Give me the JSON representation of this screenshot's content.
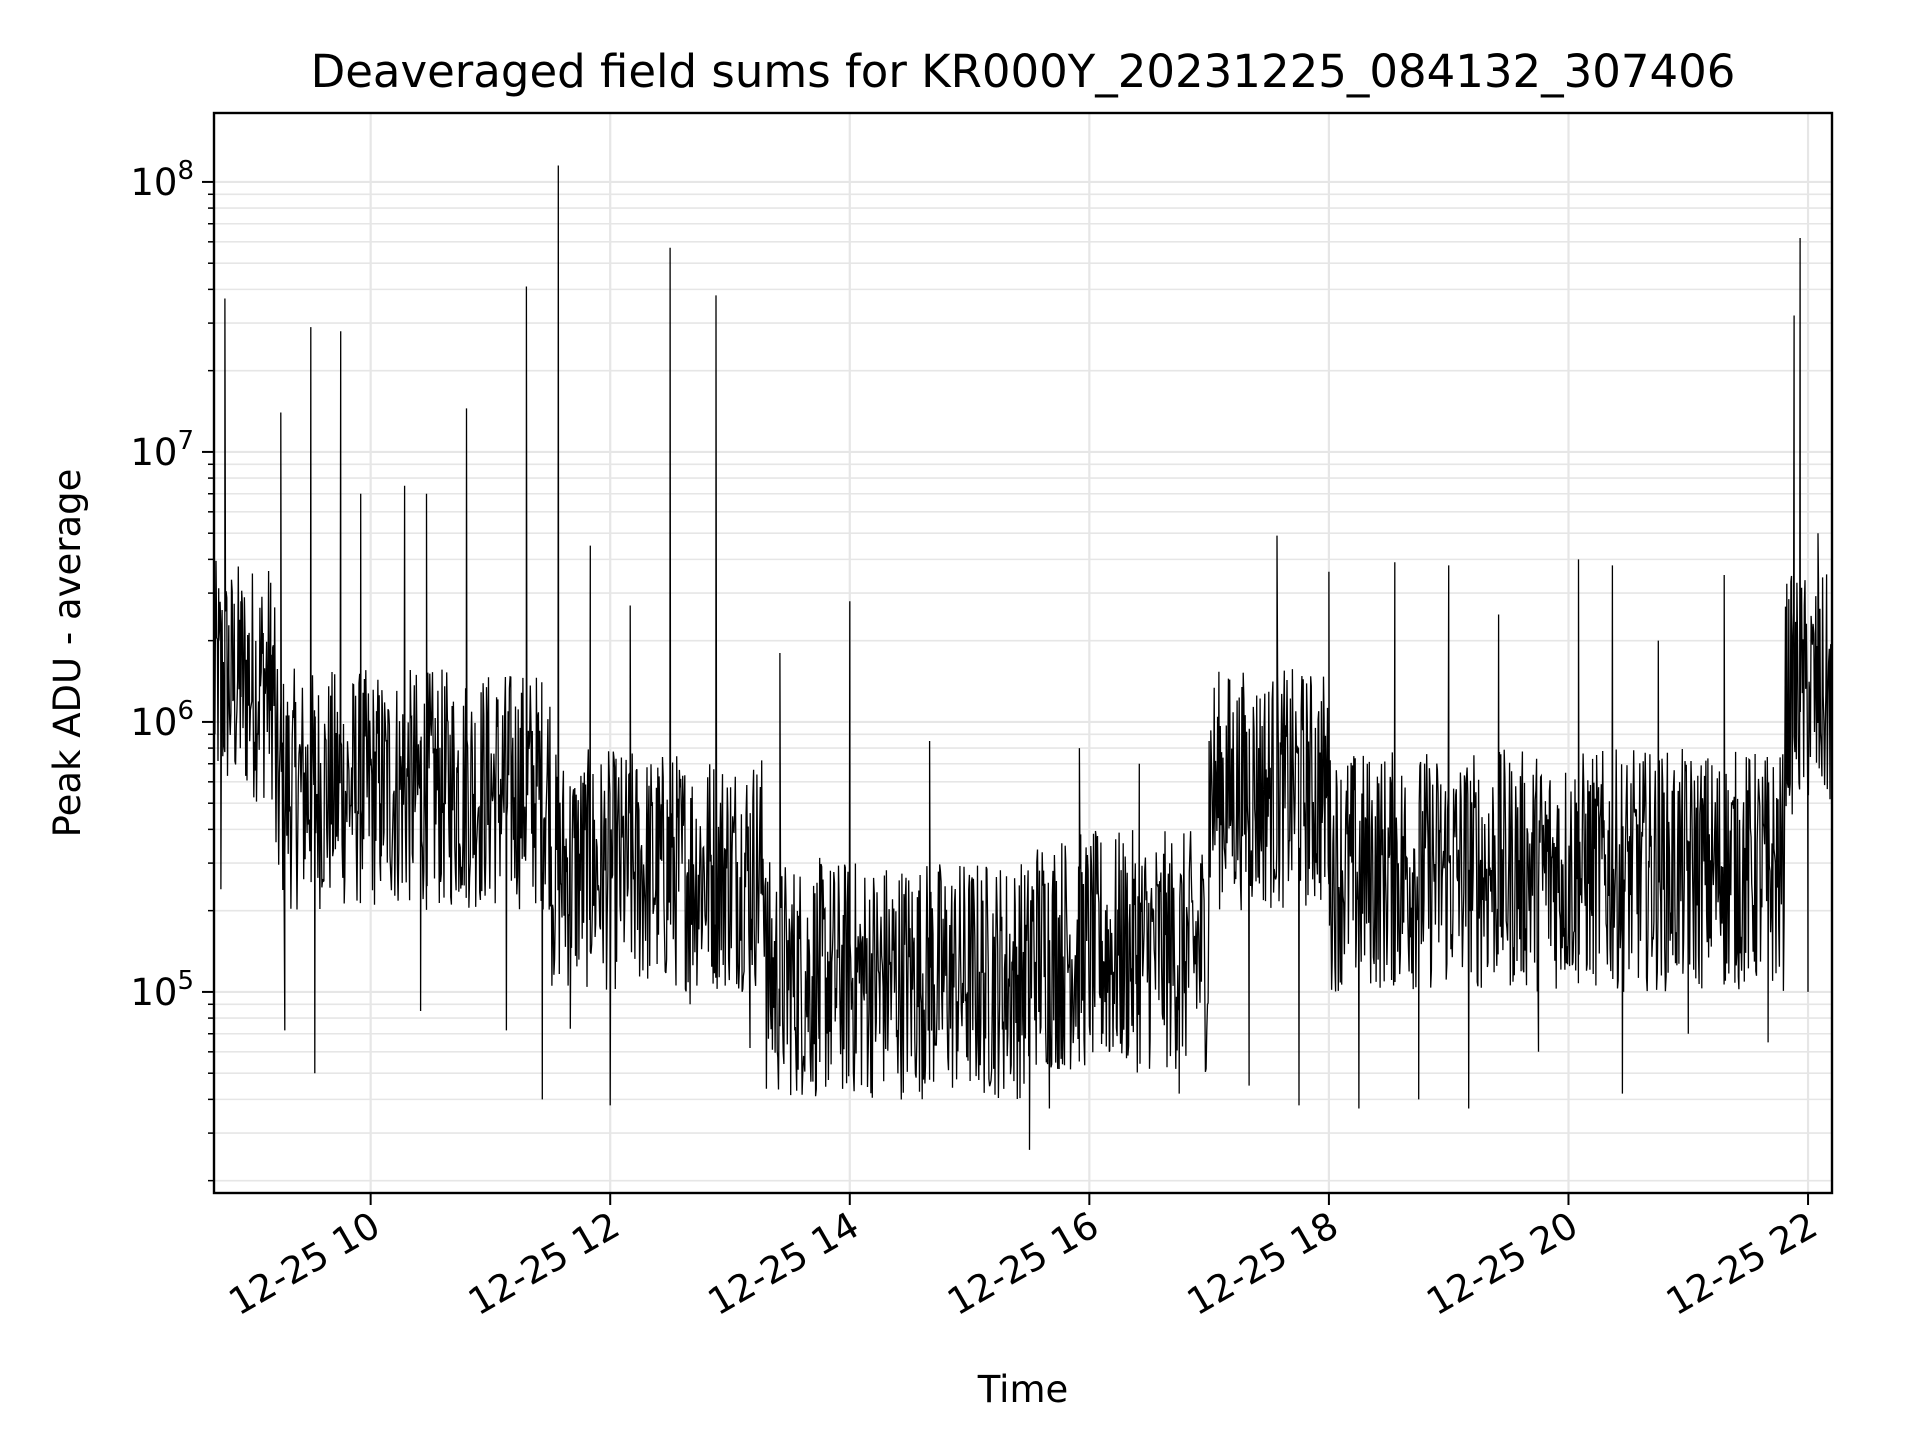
{
  "chart_data": {
    "type": "line",
    "title": "Deaveraged field sums for KR000Y_20231225_084132_307406",
    "xlabel": "Time",
    "ylabel": "Peak ADU - average",
    "y_scale": "log",
    "ylim": [
      18000,
      180000000
    ],
    "xlim": [
      "2023-12-25 08:41:32",
      "2023-12-25 22:12:00"
    ],
    "x_ticks": [
      "12-25 10",
      "12-25 12",
      "12-25 14",
      "12-25 16",
      "12-25 18",
      "12-25 20",
      "12-25 22"
    ],
    "y_ticks": [
      {
        "base": "10",
        "exp": "5",
        "value": 100000
      },
      {
        "base": "10",
        "exp": "6",
        "value": 1000000
      },
      {
        "base": "10",
        "exp": "7",
        "value": 10000000
      },
      {
        "base": "10",
        "exp": "8",
        "value": 100000000
      }
    ],
    "grid": true,
    "line_color": "#000000",
    "series": [
      {
        "points": [
          [
            "2023-12-25 08:42",
            900000
          ],
          [
            "2023-12-25 08:44",
            2000000
          ],
          [
            "2023-12-25 08:45",
            240000
          ],
          [
            "2023-12-25 08:47",
            37000000
          ],
          [
            "2023-12-25 08:49",
            1500000
          ],
          [
            "2023-12-25 08:55",
            2800000
          ],
          [
            "2023-12-25 09:10",
            1100000
          ],
          [
            "2023-12-25 09:15",
            14000000
          ],
          [
            "2023-12-25 09:17",
            72000
          ],
          [
            "2023-12-25 09:30",
            29000000
          ],
          [
            "2023-12-25 09:32",
            50000
          ],
          [
            "2023-12-25 09:40",
            700000
          ],
          [
            "2023-12-25 09:45",
            28000000
          ],
          [
            "2023-12-25 09:55",
            7000000
          ],
          [
            "2023-12-25 10:05",
            500000
          ],
          [
            "2023-12-25 10:17",
            7500000
          ],
          [
            "2023-12-25 10:25",
            85000
          ],
          [
            "2023-12-25 10:28",
            7000000
          ],
          [
            "2023-12-25 10:40",
            600000
          ],
          [
            "2023-12-25 10:48",
            14500000
          ],
          [
            "2023-12-25 11:00",
            400000
          ],
          [
            "2023-12-25 11:08",
            72000
          ],
          [
            "2023-12-25 11:18",
            41000000
          ],
          [
            "2023-12-25 11:26",
            40000
          ],
          [
            "2023-12-25 11:34",
            115000000
          ],
          [
            "2023-12-25 11:40",
            73000
          ],
          [
            "2023-12-25 11:50",
            4500000
          ],
          [
            "2023-12-25 12:00",
            38000
          ],
          [
            "2023-12-25 12:10",
            2700000
          ],
          [
            "2023-12-25 12:30",
            57000000
          ],
          [
            "2023-12-25 12:40",
            90000
          ],
          [
            "2023-12-25 12:53",
            38000000
          ],
          [
            "2023-12-25 13:10",
            62000
          ],
          [
            "2023-12-25 13:25",
            1800000
          ],
          [
            "2023-12-25 13:45",
            55000
          ],
          [
            "2023-12-25 14:00",
            2800000
          ],
          [
            "2023-12-25 14:15",
            70000
          ],
          [
            "2023-12-25 14:40",
            850000
          ],
          [
            "2023-12-25 15:05",
            60000
          ],
          [
            "2023-12-25 15:30",
            26000
          ],
          [
            "2023-12-25 15:40",
            37000
          ],
          [
            "2023-12-25 15:55",
            800000
          ],
          [
            "2023-12-25 16:10",
            60000
          ],
          [
            "2023-12-25 16:25",
            700000
          ],
          [
            "2023-12-25 16:45",
            42000
          ],
          [
            "2023-12-25 17:00",
            850000
          ],
          [
            "2023-12-25 17:20",
            45000
          ],
          [
            "2023-12-25 17:34",
            4900000
          ],
          [
            "2023-12-25 17:45",
            38000
          ],
          [
            "2023-12-25 18:00",
            3600000
          ],
          [
            "2023-12-25 18:15",
            37000
          ],
          [
            "2023-12-25 18:33",
            3900000
          ],
          [
            "2023-12-25 18:45",
            40000
          ],
          [
            "2023-12-25 19:00",
            3800000
          ],
          [
            "2023-12-25 19:10",
            37000
          ],
          [
            "2023-12-25 19:25",
            2500000
          ],
          [
            "2023-12-25 19:45",
            60000
          ],
          [
            "2023-12-25 20:05",
            4000000
          ],
          [
            "2023-12-25 20:22",
            3800000
          ],
          [
            "2023-12-25 20:27",
            42000
          ],
          [
            "2023-12-25 20:45",
            2000000
          ],
          [
            "2023-12-25 21:00",
            70000
          ],
          [
            "2023-12-25 21:18",
            3500000
          ],
          [
            "2023-12-25 21:40",
            65000
          ],
          [
            "2023-12-25 21:53",
            32000000
          ],
          [
            "2023-12-25 21:56",
            62000000
          ],
          [
            "2023-12-25 22:00",
            100000
          ],
          [
            "2023-12-25 22:05",
            5000000
          ],
          [
            "2023-12-25 22:00",
            800000
          ]
        ]
      }
    ]
  }
}
